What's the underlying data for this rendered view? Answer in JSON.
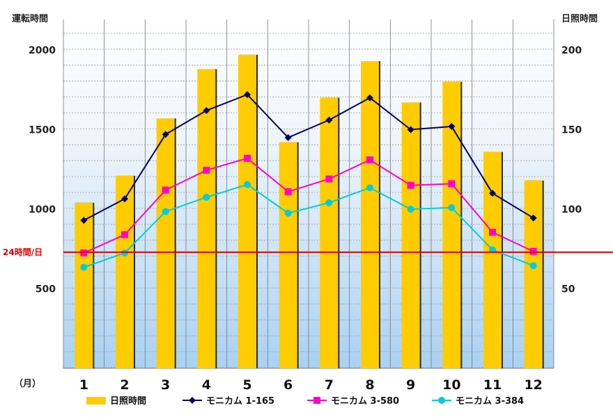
{
  "chart_data": {
    "type": "bar",
    "categories": [
      "1",
      "2",
      "3",
      "4",
      "5",
      "6",
      "7",
      "8",
      "9",
      "10",
      "11",
      "12"
    ],
    "x_unit": "（月）",
    "y_left": {
      "label": "運転時間",
      "ticks": [
        "500",
        "1000",
        "1500",
        "2000"
      ]
    },
    "y_right": {
      "label": "日照時間",
      "ticks": [
        "50",
        "100",
        "150",
        "200"
      ]
    },
    "grid": true,
    "legend_position": "bottom",
    "series": [
      {
        "name": "日照時間",
        "kind": "bar",
        "axis": "right",
        "color": "#FFCC00",
        "values": [
          104,
          121,
          157,
          188,
          197,
          142,
          170,
          193,
          167,
          180,
          136,
          118
        ]
      },
      {
        "name": "モニカム 1-165",
        "kind": "line",
        "axis": "left",
        "color": "#000066",
        "marker": "diamond",
        "values": [
          930,
          1065,
          1470,
          1620,
          1720,
          1450,
          1560,
          1700,
          1500,
          1520,
          1100,
          945
        ]
      },
      {
        "name": "モニカム 3-580",
        "kind": "line",
        "axis": "left",
        "color": "#FF00CC",
        "marker": "square",
        "values": [
          725,
          840,
          1120,
          1245,
          1320,
          1110,
          1190,
          1310,
          1150,
          1160,
          855,
          735
        ]
      },
      {
        "name": "モニカム 3-384",
        "kind": "line",
        "axis": "left",
        "color": "#00CCDD",
        "marker": "circle",
        "values": [
          635,
          725,
          985,
          1075,
          1155,
          975,
          1040,
          1135,
          1000,
          1010,
          745,
          645
        ]
      }
    ],
    "reference_line": {
      "label": "24時間/日",
      "value": 730,
      "axis": "left",
      "color": "#DD0000"
    }
  }
}
